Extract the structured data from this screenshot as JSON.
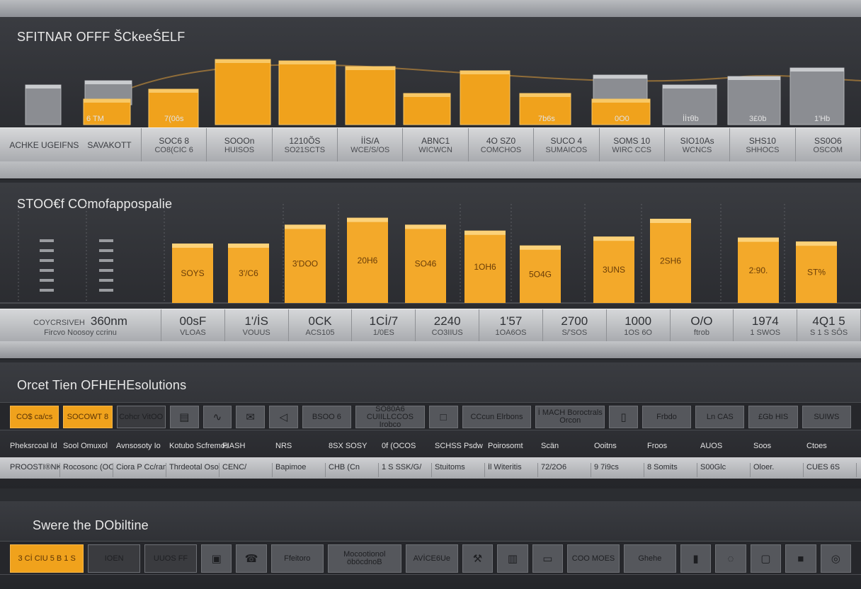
{
  "colors": {
    "accent": "#f0a21c",
    "bar_top": "#f8bd3c",
    "grey_bar": "#8b8d92"
  },
  "sections": {
    "top_title": "SFITNAR OFFF ŠCkeeŚELF",
    "chart_title": "STOO€f COmofappospalie",
    "tabs_title": "Orcet Tien OFHEHEsolutions",
    "bottom_title": "Swere the DObiltine"
  },
  "top_chart": {
    "below_labels": [
      "6 TM",
      "7(0ôs",
      "7b6s",
      "0O0",
      "İİτθb",
      "3£0b",
      "1'Hb"
    ],
    "strip_head": [
      "ACHKE UGEIFNS",
      "SAVAKOTT"
    ],
    "strip_cells": [
      [
        "SOC6 8",
        "CO8(CIC 6"
      ],
      [
        "SOOOn",
        "HUISOS"
      ],
      [
        "1210ÕS",
        "SO21SCTS"
      ],
      [
        "İİS/A",
        "WCE/S/OS"
      ],
      [
        "ABNC1",
        "WICWCN"
      ],
      [
        "4O SZ0",
        "COMCHOS"
      ],
      [
        "SUCO 4",
        "SUMAICOS"
      ],
      [
        "SOMS 10",
        "WIRC CCS"
      ],
      [
        "SIO10As",
        "WCNCS"
      ],
      [
        "SHS10",
        "SHHOCS"
      ],
      [
        "SS0O6",
        "OSCOM"
      ]
    ]
  },
  "chart_data": {
    "type": "bar",
    "title": "STOO€f COmofappospalie",
    "data_labels": [
      "SOYS",
      "3'/C6",
      "3'DOO",
      "20H6",
      "SO46",
      "1OH6",
      "5O4G",
      "3UNS",
      "2SH6",
      "2:90.",
      "ST%"
    ],
    "values": [
      60,
      60,
      79,
      86,
      79,
      73,
      58,
      67,
      85,
      66,
      62
    ],
    "ylim": [
      0,
      100
    ]
  },
  "bottom_strip": {
    "head_big": "360nm",
    "head_left": "COYCRSIVEH",
    "head_sub": "Fircvo Noosoy ccrinu",
    "cells": [
      [
        "00sF",
        "VLOAS"
      ],
      [
        "1'/İS",
        "VOUUS"
      ],
      [
        "0CK",
        "ACS105"
      ],
      [
        "1Cİ/7",
        "1/0ES"
      ],
      [
        "2240",
        "CO3IIUS"
      ],
      [
        "1'57",
        "1OA6OS"
      ],
      [
        "2700",
        "S/'SOS"
      ],
      [
        "1000",
        "1OS 6O"
      ],
      [
        "O/O",
        "ftrob"
      ],
      [
        "1974",
        "1 SWOS"
      ],
      [
        "4Q1 5",
        "S 1 S SÔS"
      ]
    ]
  },
  "tabs": [
    {
      "label": "CO$ ca/cs",
      "style": "orange"
    },
    {
      "label": "SOCOWT 8",
      "style": "orange"
    },
    {
      "label": "Cohcr VitOO",
      "style": "dark"
    },
    {
      "icon": "chart-icon"
    },
    {
      "icon": "pulse-icon"
    },
    {
      "icon": "message-icon"
    },
    {
      "icon": "megaphone-icon"
    },
    {
      "label": "BSOO 6",
      "style": "grey"
    },
    {
      "label": "SO80A6 CUIILLCCOS\nIrobco",
      "style": "grey"
    },
    {
      "icon": "document-icon"
    },
    {
      "label": "CCcun Elrbons",
      "style": "grey"
    },
    {
      "label": "İ MACH Boroctrals Orcon",
      "style": "grey"
    },
    {
      "icon": "bottle-icon"
    },
    {
      "label": "Frbdo",
      "style": "grey"
    },
    {
      "label": "Ln CAS",
      "style": "grey"
    },
    {
      "label": "£Gb HIS",
      "style": "grey"
    },
    {
      "label": "SUIWS",
      "style": "grey"
    }
  ],
  "tab_labels": [
    "Pheksrcoal Id",
    "Sool Omuxol",
    "Avnsosoty Io",
    "Kotubo Scfremos",
    "FIASH",
    "NRS",
    "8SX SOSY",
    "0f (OCOS",
    "SCHSS Psdw",
    "Poirosomt",
    "Scän",
    "Ooitns",
    "Froos",
    "AUOS",
    "Soos",
    "Ctoes"
  ],
  "light_row": [
    "PROOSTI®NKK",
    "Rocosonc (OCES",
    "Ciora P Cc/ran.",
    "Thrdeotal Ososocans",
    "CENC/",
    "Bapimoe",
    "CHB (Cn",
    "1 S SSK/G/",
    "Stuitoms",
    "İl Witeritis",
    "72/2O6",
    "9 7i9cs",
    "8 Somits",
    "S00Glc",
    "Oloer.",
    "CUES 6S"
  ],
  "bottom_tabs": [
    {
      "label": "3 Cİ CIU 5 B 1 S",
      "style": "orange"
    },
    {
      "label": "IOEN",
      "style": "dark"
    },
    {
      "label": "UUOS FF",
      "style": "dark"
    },
    {
      "icon": "folder-icon"
    },
    {
      "icon": "phone-icon"
    },
    {
      "label": "Ffeitoro",
      "style": "grey"
    },
    {
      "label": "Mocootionol öböcdnoB",
      "style": "grey"
    },
    {
      "label": "AVİCE6Ue",
      "style": "grey"
    },
    {
      "icon": "tools-icon"
    },
    {
      "icon": "book-icon"
    },
    {
      "icon": "sofa-icon"
    },
    {
      "label": "COO MOES",
      "style": "grey"
    },
    {
      "label": "Ghehe",
      "style": "grey"
    },
    {
      "icon": "device-icon"
    },
    {
      "icon": "mouse-icon"
    },
    {
      "icon": "frame-icon"
    },
    {
      "icon": "box-icon"
    },
    {
      "icon": "circle-icon"
    }
  ]
}
